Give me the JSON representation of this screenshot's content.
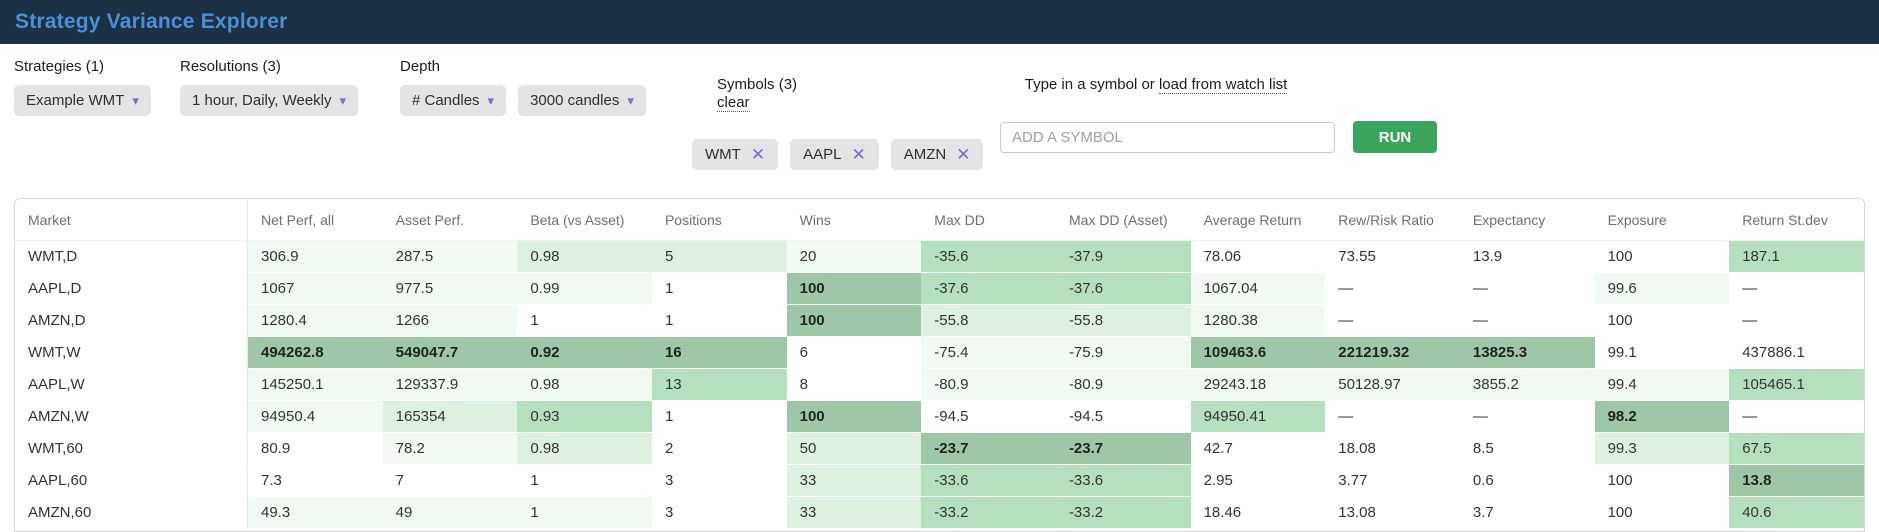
{
  "header": {
    "title": "Strategy Variance Explorer"
  },
  "filters": {
    "strategies": {
      "label": "Strategies (1)",
      "value": "Example WMT"
    },
    "resolutions": {
      "label": "Resolutions (3)",
      "value": "1 hour, Daily, Weekly"
    },
    "depth": {
      "label": "Depth",
      "mode_value": "# Candles",
      "candles_value": "3000 candles"
    },
    "symbols": {
      "label": "Symbols (3)",
      "clear_label": "clear",
      "chips": [
        "WMT",
        "AAPL",
        "AMZN"
      ]
    },
    "add_symbol": {
      "label_prefix": "Type in a symbol or ",
      "label_link": "load from watch list",
      "placeholder": "ADD A SYMBOL",
      "run_label": "RUN"
    }
  },
  "table": {
    "columns": [
      "Market",
      "Net Perf, all",
      "Asset Perf.",
      "Beta (vs Asset)",
      "Positions",
      "Wins",
      "Max DD",
      "Max DD (Asset)",
      "Average Return",
      "Rew/Risk Ratio",
      "Expectancy",
      "Exposure",
      "Return St.dev"
    ],
    "rows": [
      {
        "market": "WMT,D",
        "cells": [
          [
            "306.9",
            1,
            0
          ],
          [
            "287.5",
            1,
            0
          ],
          [
            "0.98",
            2,
            0
          ],
          [
            "5",
            2,
            0
          ],
          [
            "20",
            1,
            0
          ],
          [
            "-35.6",
            3,
            0
          ],
          [
            "-37.9",
            3,
            0
          ],
          [
            "78.06",
            0,
            0
          ],
          [
            "73.55",
            0,
            0
          ],
          [
            "13.9",
            0,
            0
          ],
          [
            "100",
            0,
            0
          ],
          [
            "187.1",
            3,
            0
          ]
        ]
      },
      {
        "market": "AAPL,D",
        "cells": [
          [
            "1067",
            1,
            0
          ],
          [
            "977.5",
            1,
            0
          ],
          [
            "0.99",
            1,
            0
          ],
          [
            "1",
            0,
            0
          ],
          [
            "100",
            4,
            1
          ],
          [
            "-37.6",
            3,
            0
          ],
          [
            "-37.6",
            3,
            0
          ],
          [
            "1067.04",
            1,
            0
          ],
          [
            "—",
            0,
            0
          ],
          [
            "—",
            0,
            0
          ],
          [
            "99.6",
            1,
            0
          ],
          [
            "—",
            0,
            0
          ]
        ]
      },
      {
        "market": "AMZN,D",
        "cells": [
          [
            "1280.4",
            1,
            0
          ],
          [
            "1266",
            1,
            0
          ],
          [
            "1",
            0,
            0
          ],
          [
            "1",
            0,
            0
          ],
          [
            "100",
            4,
            1
          ],
          [
            "-55.8",
            2,
            0
          ],
          [
            "-55.8",
            2,
            0
          ],
          [
            "1280.38",
            1,
            0
          ],
          [
            "—",
            0,
            0
          ],
          [
            "—",
            0,
            0
          ],
          [
            "100",
            0,
            0
          ],
          [
            "—",
            0,
            0
          ]
        ]
      },
      {
        "market": "WMT,W",
        "cells": [
          [
            "494262.8",
            4,
            1
          ],
          [
            "549047.7",
            4,
            1
          ],
          [
            "0.92",
            4,
            1
          ],
          [
            "16",
            4,
            1
          ],
          [
            "6",
            0,
            0
          ],
          [
            "-75.4",
            1,
            0
          ],
          [
            "-75.9",
            1,
            0
          ],
          [
            "109463.6",
            4,
            1
          ],
          [
            "221219.32",
            4,
            1
          ],
          [
            "13825.3",
            4,
            1
          ],
          [
            "99.1",
            0,
            0
          ],
          [
            "437886.1",
            0,
            0
          ]
        ]
      },
      {
        "market": "AAPL,W",
        "cells": [
          [
            "145250.1",
            1,
            0
          ],
          [
            "129337.9",
            1,
            0
          ],
          [
            "0.98",
            1,
            0
          ],
          [
            "13",
            3,
            0
          ],
          [
            "8",
            0,
            0
          ],
          [
            "-80.9",
            1,
            0
          ],
          [
            "-80.9",
            1,
            0
          ],
          [
            "29243.18",
            1,
            0
          ],
          [
            "50128.97",
            1,
            0
          ],
          [
            "3855.2",
            1,
            0
          ],
          [
            "99.4",
            1,
            0
          ],
          [
            "105465.1",
            3,
            0
          ]
        ]
      },
      {
        "market": "AMZN,W",
        "cells": [
          [
            "94950.4",
            1,
            0
          ],
          [
            "165354",
            2,
            0
          ],
          [
            "0.93",
            3,
            0
          ],
          [
            "1",
            0,
            0
          ],
          [
            "100",
            4,
            1
          ],
          [
            "-94.5",
            0,
            0
          ],
          [
            "-94.5",
            0,
            0
          ],
          [
            "94950.41",
            3,
            0
          ],
          [
            "—",
            0,
            0
          ],
          [
            "—",
            0,
            0
          ],
          [
            "98.2",
            4,
            1
          ],
          [
            "—",
            0,
            0
          ]
        ]
      },
      {
        "market": "WMT,60",
        "cells": [
          [
            "80.9",
            0,
            0
          ],
          [
            "78.2",
            1,
            0
          ],
          [
            "0.98",
            2,
            0
          ],
          [
            "2",
            0,
            0
          ],
          [
            "50",
            2,
            0
          ],
          [
            "-23.7",
            4,
            1
          ],
          [
            "-23.7",
            4,
            1
          ],
          [
            "42.7",
            0,
            0
          ],
          [
            "18.08",
            0,
            0
          ],
          [
            "8.5",
            0,
            0
          ],
          [
            "99.3",
            2,
            0
          ],
          [
            "67.5",
            3,
            0
          ]
        ]
      },
      {
        "market": "AAPL,60",
        "cells": [
          [
            "7.3",
            0,
            0
          ],
          [
            "7",
            0,
            0
          ],
          [
            "1",
            0,
            0
          ],
          [
            "3",
            0,
            0
          ],
          [
            "33",
            2,
            0
          ],
          [
            "-33.6",
            3,
            0
          ],
          [
            "-33.6",
            3,
            0
          ],
          [
            "2.95",
            0,
            0
          ],
          [
            "3.77",
            0,
            0
          ],
          [
            "0.6",
            0,
            0
          ],
          [
            "100",
            0,
            0
          ],
          [
            "13.8",
            4,
            1
          ]
        ]
      },
      {
        "market": "AMZN,60",
        "cells": [
          [
            "49.3",
            1,
            0
          ],
          [
            "49",
            1,
            0
          ],
          [
            "1",
            1,
            0
          ],
          [
            "3",
            0,
            0
          ],
          [
            "33",
            2,
            0
          ],
          [
            "-33.2",
            3,
            0
          ],
          [
            "-33.2",
            3,
            0
          ],
          [
            "18.46",
            0,
            0
          ],
          [
            "13.08",
            0,
            0
          ],
          [
            "3.7",
            0,
            0
          ],
          [
            "100",
            0,
            0
          ],
          [
            "40.6",
            3,
            0
          ]
        ]
      }
    ]
  },
  "colors": {
    "topbar_bg": "#1d3144",
    "accent_blue": "#4a90d9",
    "run_green": "#3aa45c",
    "caret_purple": "#6f6fd6",
    "heat_scale": [
      "transparent",
      "#f1faf2",
      "#def1e1",
      "#b4e0be",
      "#9dc7a6"
    ]
  }
}
